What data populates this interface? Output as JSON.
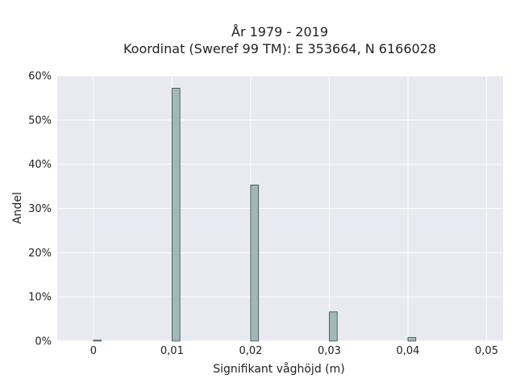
{
  "chart_data": {
    "type": "bar",
    "title_line1": "År 1979 - 2019",
    "title_line2": "Koordinat (Sweref 99 TM): E 353664, N 6166028",
    "xlabel": "Signifikant våghöjd (m)",
    "ylabel": "Andel",
    "xlim": [
      -0.0046,
      0.0521
    ],
    "ylim": [
      0,
      60
    ],
    "x_ticks": [
      0,
      0.01,
      0.02,
      0.03,
      0.04,
      0.05
    ],
    "x_tick_labels": [
      "0",
      "0,01",
      "0,02",
      "0,03",
      "0,04",
      "0,05"
    ],
    "y_ticks": [
      0,
      10,
      20,
      30,
      40,
      50,
      60
    ],
    "y_tick_labels": [
      "0%",
      "10%",
      "20%",
      "30%",
      "40%",
      "50%",
      "60%"
    ],
    "bin_width": 0.001,
    "bars": [
      {
        "x": 0.0,
        "value": 0.2
      },
      {
        "x": 0.01,
        "value": 57.2
      },
      {
        "x": 0.02,
        "value": 35.3
      },
      {
        "x": 0.03,
        "value": 6.6
      },
      {
        "x": 0.04,
        "value": 0.8
      }
    ],
    "bar_color": "#9fb8b8",
    "bar_edge_color": "#3a4a4a",
    "plot_background": "#e9e9f2",
    "grid": true,
    "grid_color": "#ffffff"
  }
}
